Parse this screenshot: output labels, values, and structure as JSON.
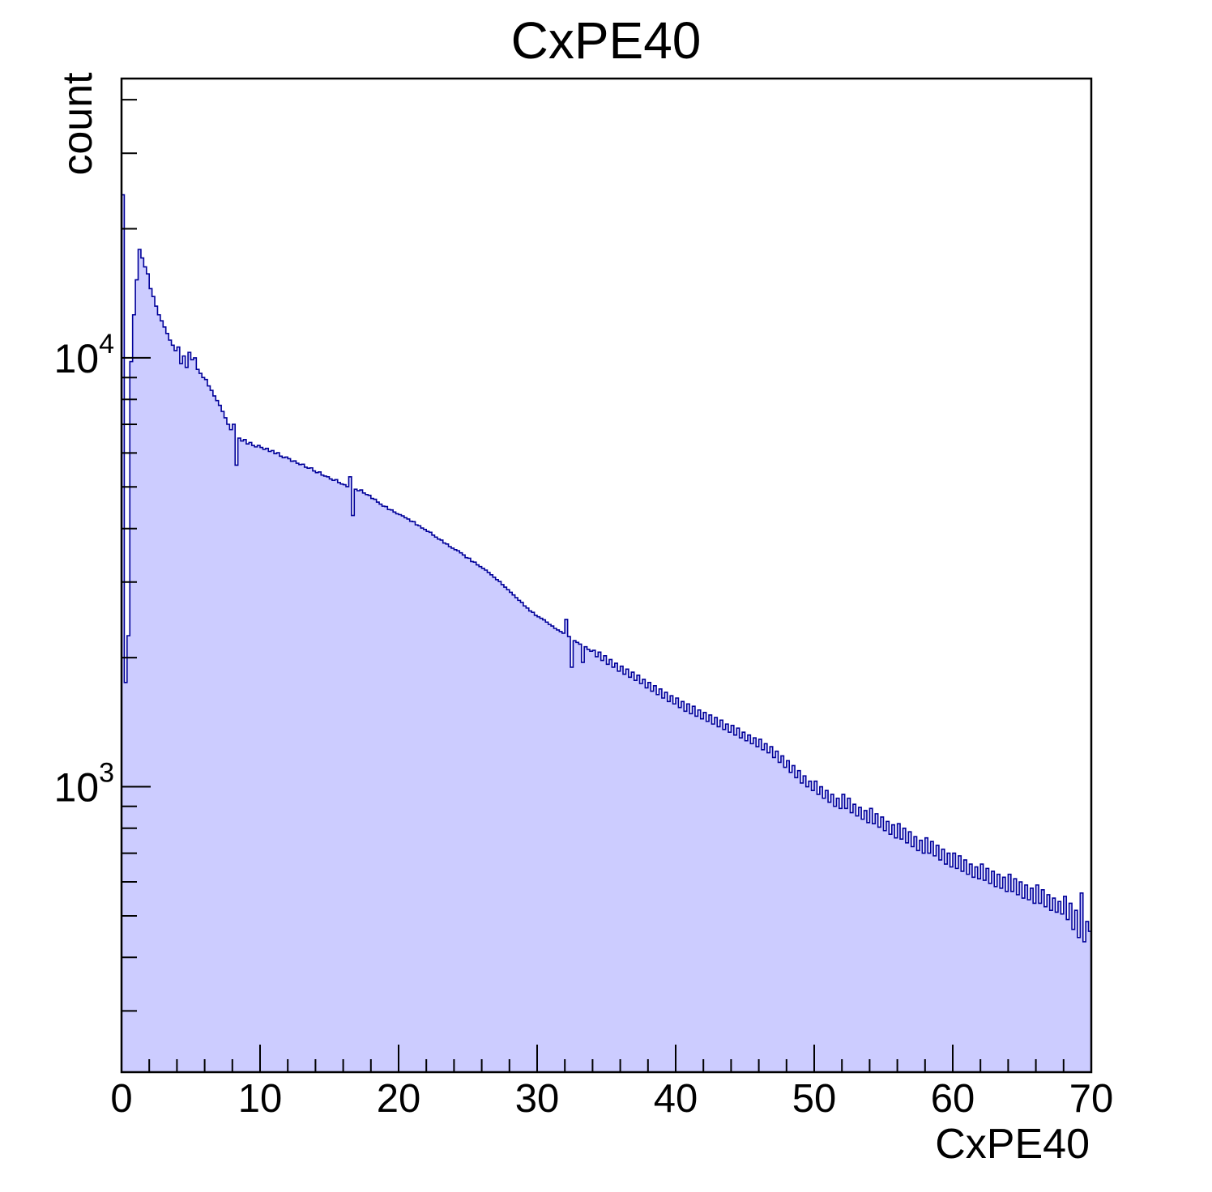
{
  "page": {
    "background": "#ffffff"
  },
  "chart_data": {
    "type": "bar",
    "subtype": "filled-step-histogram",
    "title": "CxPE40",
    "xlabel": "CxPE40",
    "ylabel": "count",
    "x_min": 0,
    "x_max": 70,
    "bin_width": 0.2,
    "n_bins": 350,
    "y_scale": "log",
    "y_min": 216,
    "y_max": 44800,
    "grid": false,
    "legend": false,
    "x_ticks_major": [
      0,
      10,
      20,
      30,
      40,
      50,
      60,
      70
    ],
    "x_tick_labels": [
      "0",
      "10",
      "20",
      "30",
      "40",
      "50",
      "60",
      "70"
    ],
    "x_ticks_minor_step": 2,
    "y_ticks_major": [
      {
        "value": 1000,
        "base": "10",
        "exponent": "3"
      },
      {
        "value": 10000,
        "base": "10",
        "exponent": "4"
      }
    ],
    "y_ticks_minor": [
      300,
      400,
      500,
      600,
      700,
      800,
      900,
      2000,
      3000,
      4000,
      5000,
      6000,
      7000,
      8000,
      9000,
      20000,
      30000,
      40000
    ],
    "colors": {
      "fill": "#ccccff",
      "line": "#000099",
      "frame": "#000000",
      "text": "#000000"
    },
    "bins": [
      24000,
      1750,
      2250,
      9800,
      12600,
      15200,
      17900,
      17100,
      16300,
      15700,
      14500,
      13900,
      13200,
      12600,
      12200,
      11800,
      11400,
      11000,
      10700,
      10400,
      10600,
      9700,
      10100,
      9500,
      10300,
      9900,
      10000,
      9400,
      9200,
      9000,
      8900,
      8600,
      8400,
      8150,
      7950,
      7750,
      7500,
      7250,
      7000,
      6800,
      7000,
      5620,
      6500,
      6400,
      6450,
      6300,
      6350,
      6250,
      6200,
      6250,
      6180,
      6120,
      6150,
      6050,
      6080,
      5980,
      6010,
      5900,
      5850,
      5870,
      5820,
      5740,
      5750,
      5680,
      5640,
      5650,
      5560,
      5530,
      5540,
      5450,
      5400,
      5420,
      5330,
      5300,
      5280,
      5220,
      5180,
      5200,
      5120,
      5080,
      5060,
      5010,
      5280,
      4290,
      4940,
      4900,
      4920,
      4840,
      4800,
      4780,
      4700,
      4680,
      4610,
      4560,
      4510,
      4500,
      4430,
      4420,
      4370,
      4330,
      4310,
      4280,
      4240,
      4210,
      4160,
      4150,
      4080,
      4060,
      4010,
      3980,
      3940,
      3920,
      3860,
      3820,
      3780,
      3760,
      3700,
      3680,
      3630,
      3600,
      3570,
      3550,
      3510,
      3470,
      3420,
      3410,
      3350,
      3340,
      3290,
      3260,
      3230,
      3200,
      3160,
      3120,
      3080,
      3040,
      3010,
      2960,
      2920,
      2880,
      2840,
      2800,
      2760,
      2720,
      2690,
      2640,
      2610,
      2570,
      2550,
      2510,
      2490,
      2470,
      2450,
      2420,
      2390,
      2370,
      2340,
      2320,
      2300,
      2280,
      2455,
      2240,
      1900,
      2190,
      2170,
      2150,
      1950,
      2120,
      2090,
      2070,
      2080,
      2010,
      2060,
      1970,
      2020,
      1930,
      1980,
      1900,
      1940,
      1860,
      1910,
      1830,
      1880,
      1800,
      1850,
      1770,
      1820,
      1740,
      1780,
      1700,
      1750,
      1670,
      1720,
      1640,
      1690,
      1610,
      1660,
      1580,
      1630,
      1560,
      1610,
      1530,
      1580,
      1500,
      1560,
      1480,
      1540,
      1460,
      1510,
      1440,
      1490,
      1420,
      1470,
      1400,
      1450,
      1380,
      1430,
      1360,
      1400,
      1340,
      1390,
      1320,
      1370,
      1300,
      1340,
      1280,
      1320,
      1260,
      1300,
      1240,
      1290,
      1220,
      1260,
      1200,
      1240,
      1170,
      1210,
      1140,
      1180,
      1110,
      1150,
      1080,
      1120,
      1050,
      1090,
      1020,
      1060,
      1000,
      1030,
      980,
      1030,
      960,
      1000,
      940,
      980,
      920,
      960,
      900,
      940,
      890,
      960,
      890,
      940,
      870,
      910,
      855,
      895,
      840,
      880,
      825,
      890,
      820,
      865,
      805,
      850,
      790,
      830,
      775,
      815,
      760,
      820,
      755,
      800,
      740,
      785,
      725,
      765,
      710,
      750,
      700,
      760,
      700,
      745,
      690,
      730,
      675,
      715,
      660,
      700,
      650,
      700,
      645,
      690,
      635,
      675,
      625,
      660,
      615,
      650,
      610,
      660,
      605,
      645,
      595,
      635,
      585,
      625,
      580,
      615,
      570,
      625,
      570,
      610,
      560,
      600,
      550,
      590,
      545,
      580,
      535,
      590,
      535,
      575,
      525,
      560,
      515,
      550,
      510,
      540,
      505,
      555,
      490,
      535,
      465,
      515,
      445,
      565,
      435,
      485,
      460
    ]
  }
}
